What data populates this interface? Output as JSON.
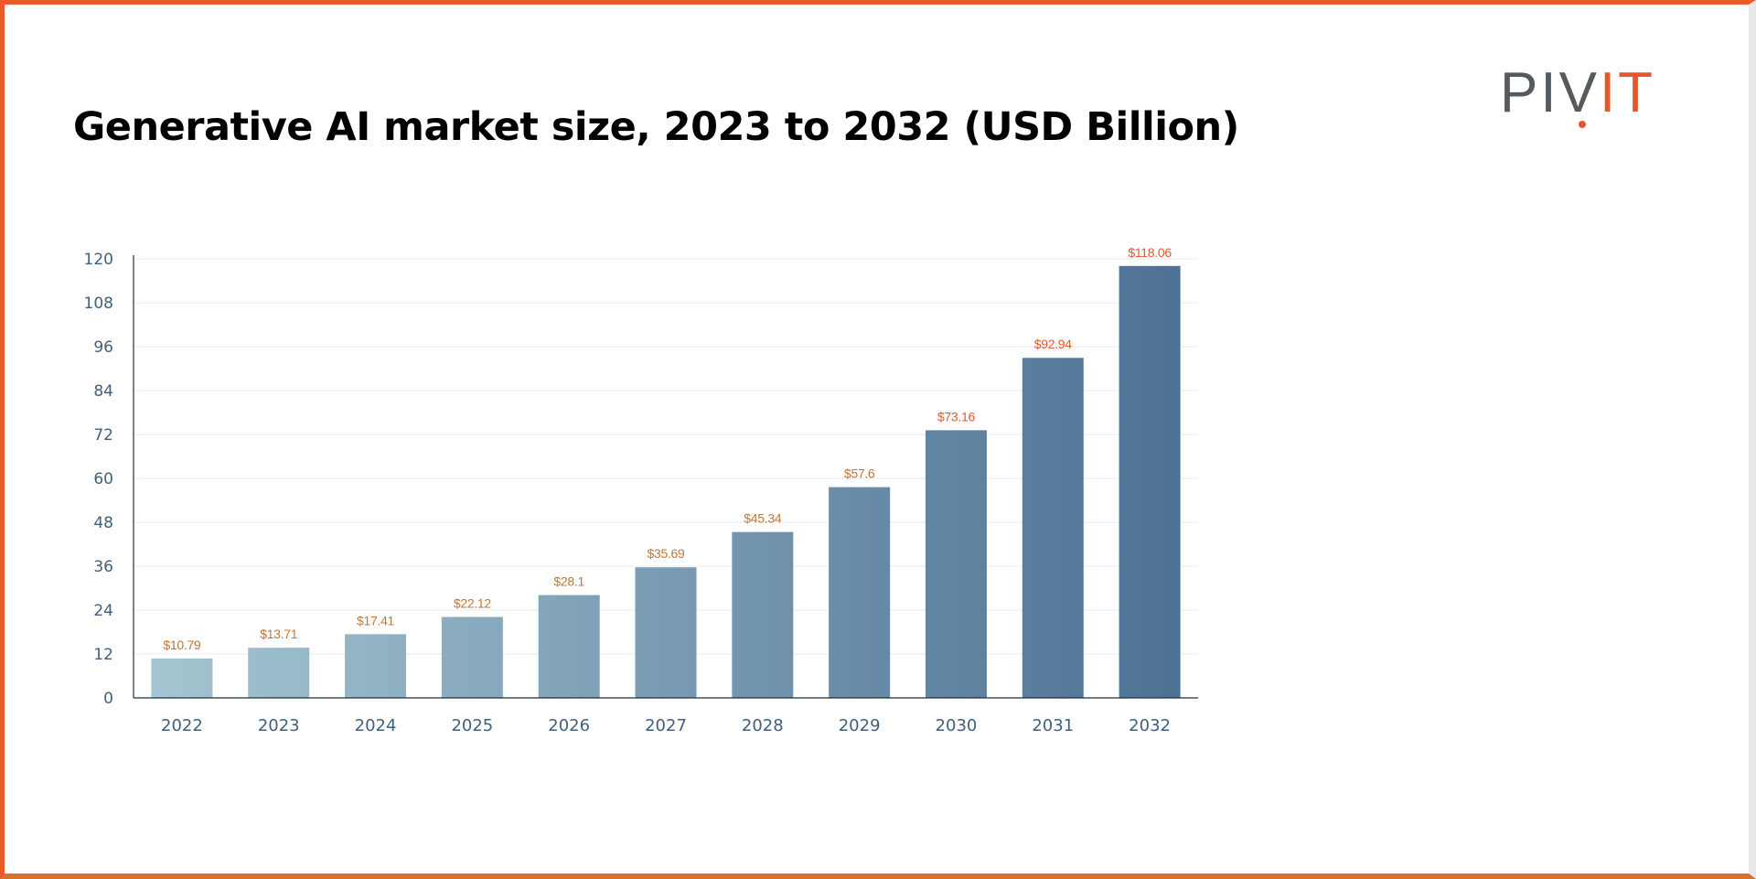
{
  "page": {
    "title": "Generative AI market size, 2023 to 2032 (USD Billion)",
    "logo": {
      "left_text": "PIV",
      "right_text": "IT",
      "left_color": "#555a5f",
      "right_color": "#e8572c"
    }
  },
  "colors": {
    "frame": "#e85a2a",
    "bar_light": "#a6c6d2",
    "bar_dark": "#4c7093",
    "label_warm": "#c0763a",
    "label_hot": "#e2582f",
    "axis_text": "#3f5f7e"
  },
  "chart_data": {
    "type": "bar",
    "title": "Generative AI market size, 2023 to 2032 (USD Billion)",
    "xlabel": "",
    "ylabel": "",
    "categories": [
      "2022",
      "2023",
      "2024",
      "2025",
      "2026",
      "2027",
      "2028",
      "2029",
      "2030",
      "2031",
      "2032"
    ],
    "values": [
      10.79,
      13.71,
      17.41,
      22.12,
      28.1,
      35.69,
      45.34,
      57.6,
      73.16,
      92.94,
      118.06
    ],
    "data_labels": [
      "$10.79",
      "$13.71",
      "$17.41",
      "$22.12",
      "$28.1",
      "$35.69",
      "$45.34",
      "$57.6",
      "$73.16",
      "$92.94",
      "$118.06"
    ],
    "ylim": [
      0,
      120
    ],
    "yticks": [
      0,
      12,
      24,
      36,
      48,
      60,
      72,
      84,
      96,
      108,
      120
    ],
    "grid": true,
    "legend": "none"
  }
}
